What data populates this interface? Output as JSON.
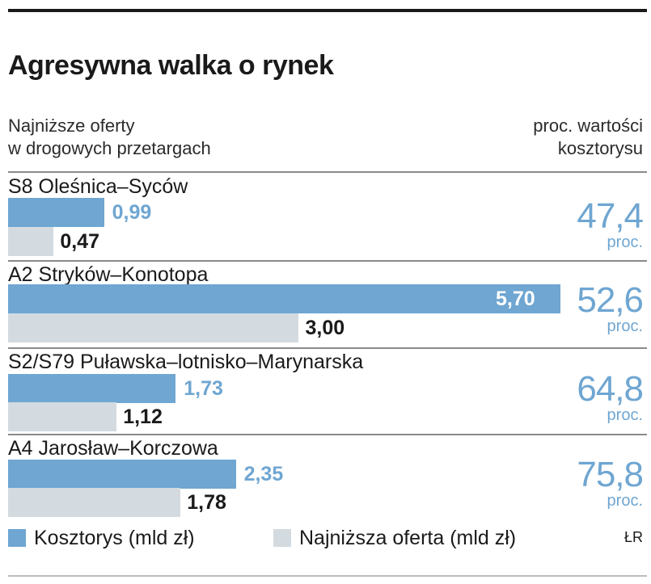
{
  "chart_data": {
    "type": "bar",
    "title": "Agresywna walka o rynek",
    "subtitle_left": [
      "Najniższe oferty",
      "w drogowych przetargach"
    ],
    "subtitle_right": [
      "proc. wartości",
      "kosztorysu"
    ],
    "categories": [
      "S8 Oleśnica–Syców",
      "A2 Stryków–Konotopa",
      "S2/S79 Puławska–lotnisko–Marynarska",
      "A4 Jarosław–Korczowa"
    ],
    "series": [
      {
        "name": "Kosztorys (mld zł)",
        "values": [
          0.99,
          5.7,
          1.73,
          2.35
        ],
        "labels": [
          "0,99",
          "5,70",
          "1,73",
          "2,35"
        ],
        "color": "#6fa6d2"
      },
      {
        "name": "Najniższa oferta (mld zł)",
        "values": [
          0.47,
          3.0,
          1.12,
          1.78
        ],
        "labels": [
          "0,47",
          "3,00",
          "1,12",
          "1,78"
        ],
        "color": "#d3dbe0"
      }
    ],
    "percent_of_estimate": [
      "47,4",
      "52,6",
      "64,8",
      "75,8"
    ],
    "percent_unit": "proc.",
    "xlim": [
      0,
      5.7
    ],
    "legend_position": "bottom",
    "credit": "ŁR"
  }
}
